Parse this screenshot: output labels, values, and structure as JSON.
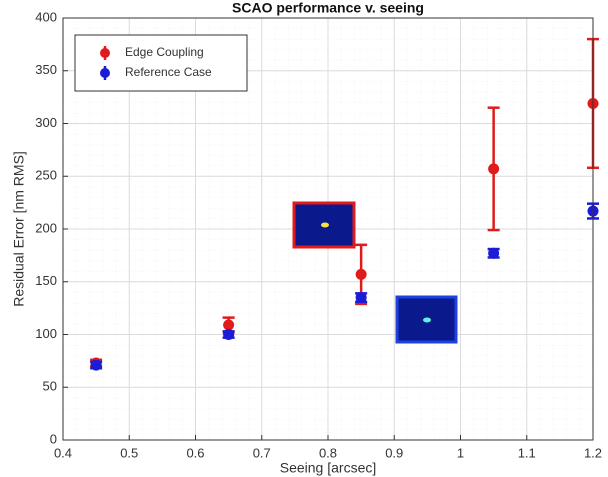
{
  "chart_data": {
    "type": "scatter",
    "title": "SCAO performance v. seeing",
    "x_label": "Seeing [arcsec]",
    "y_label": "Residual Error [nm RMS]",
    "x": [
      0.45,
      0.65,
      0.85,
      1.05,
      1.2
    ],
    "series": [
      {
        "name": "Edge Coupling",
        "color": "#e01b1b",
        "values": [
          73,
          109,
          157,
          257,
          319
        ],
        "errors": [
          3,
          7,
          28,
          58,
          61
        ]
      },
      {
        "name": "Reference Case",
        "color": "#1c1cd6",
        "values": [
          71,
          100,
          135,
          177,
          217
        ],
        "errors": [
          3,
          3,
          4,
          4,
          7
        ]
      }
    ],
    "xlim": [
      0.4,
      1.2
    ],
    "xticks": [
      0.4,
      0.5,
      0.6,
      0.7,
      0.8,
      0.9,
      1,
      1.1,
      1.2
    ],
    "ylim": [
      0,
      400
    ],
    "yticks": [
      0,
      50,
      100,
      150,
      200,
      250,
      300,
      350,
      400
    ],
    "grid": true,
    "legend": "upper-left"
  }
}
